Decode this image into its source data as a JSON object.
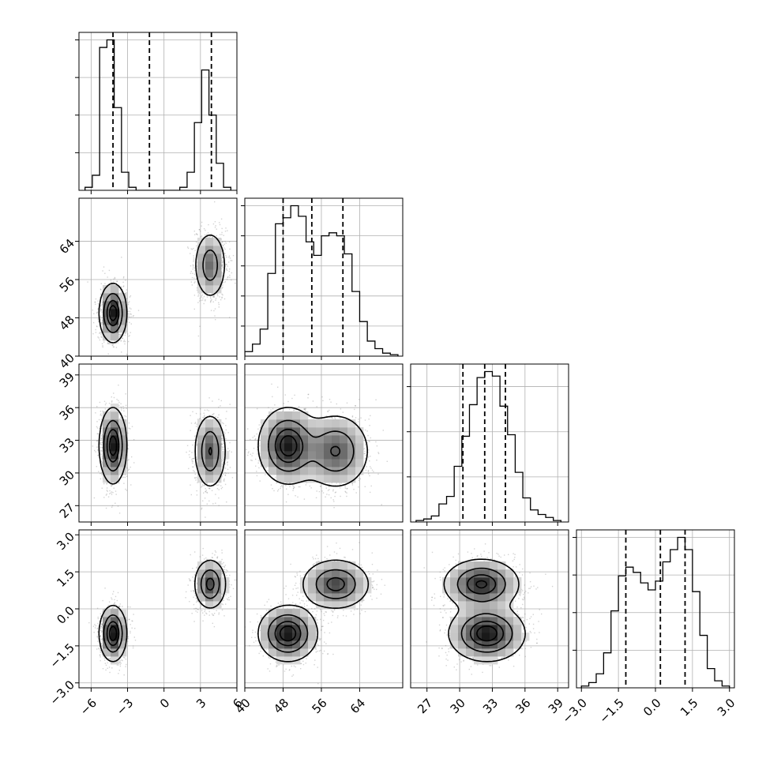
{
  "chart_data": {
    "type": "corner",
    "parameters": [
      {
        "range": [
          -7,
          6
        ],
        "ticks": [
          -6,
          -3,
          0,
          3,
          6
        ],
        "tick_labels": [
          "−6",
          "−3",
          "0",
          "3",
          "6"
        ],
        "quantiles": [
          -4.2,
          -1.2,
          3.9
        ],
        "histogram": {
          "edges": [
            -6.5,
            -5.9,
            -5.3,
            -4.7,
            -4.1,
            -3.5,
            -2.9,
            -2.3,
            -1.7,
            -1.1,
            -0.5,
            0.1,
            0.7,
            1.3,
            1.9,
            2.5,
            3.1,
            3.7,
            4.3,
            4.9,
            5.5
          ],
          "counts": [
            2,
            10,
            95,
            100,
            55,
            12,
            2,
            0,
            0,
            0,
            0,
            0,
            0,
            2,
            12,
            45,
            80,
            50,
            18,
            2
          ]
        }
      },
      {
        "range": [
          40,
          73
        ],
        "ticks": [
          40,
          48,
          56,
          64
        ],
        "tick_labels": [
          "40",
          "48",
          "56",
          "64"
        ],
        "quantiles": [
          48.0,
          54.0,
          60.5
        ],
        "histogram": {
          "edges": [
            40,
            41.6,
            43.2,
            44.8,
            46.4,
            48,
            49.6,
            51.2,
            52.8,
            54.4,
            56,
            57.6,
            59.2,
            60.8,
            62.4,
            64,
            65.6,
            67.2,
            68.8,
            70.4,
            72
          ],
          "counts": [
            3,
            8,
            18,
            55,
            88,
            92,
            100,
            93,
            76,
            67,
            80,
            82,
            80,
            68,
            43,
            23,
            10,
            5,
            2,
            1
          ]
        }
      },
      {
        "range": [
          25.5,
          40
        ],
        "ticks": [
          27,
          30,
          33,
          36,
          39
        ],
        "tick_labels": [
          "27",
          "30",
          "33",
          "36",
          "39"
        ],
        "quantiles": [
          30.3,
          32.3,
          34.2
        ],
        "histogram": {
          "edges": [
            26,
            26.7,
            27.4,
            28.1,
            28.8,
            29.5,
            30.2,
            30.9,
            31.6,
            32.3,
            33,
            33.7,
            34.4,
            35.1,
            35.8,
            36.5,
            37.2,
            37.9,
            38.6,
            39.3
          ],
          "counts": [
            1,
            2,
            4,
            12,
            17,
            37,
            57,
            78,
            96,
            100,
            97,
            77,
            58,
            33,
            16,
            8,
            5,
            3,
            1
          ]
        }
      },
      {
        "range": [
          -3.2,
          3.2
        ],
        "ticks": [
          -3.0,
          -1.5,
          0.0,
          1.5,
          3.0
        ],
        "tick_labels": [
          "−3.0",
          "−1.5",
          "0.0",
          "1.5",
          "3.0"
        ],
        "quantiles": [
          -1.2,
          0.2,
          1.2
        ],
        "histogram": {
          "edges": [
            -3.0,
            -2.7,
            -2.4,
            -2.1,
            -1.8,
            -1.5,
            -1.2,
            -0.9,
            -0.6,
            -0.3,
            0.0,
            0.3,
            0.6,
            0.9,
            1.2,
            1.5,
            1.8,
            2.1,
            2.4,
            2.7,
            3.0
          ],
          "counts": [
            1,
            3,
            8,
            20,
            44,
            64,
            69,
            66,
            60,
            56,
            61,
            72,
            79,
            86,
            79,
            55,
            30,
            11,
            4,
            1
          ]
        }
      }
    ],
    "diagonal_ticks": [
      {
        "ticks": [
          0.25,
          0.5,
          0.75,
          1.0
        ]
      },
      {
        "ticks": [
          0.2,
          0.4,
          0.6,
          0.8,
          1.0
        ]
      },
      {
        "ticks": [
          0.3,
          0.6,
          0.9
        ]
      },
      {
        "ticks": [
          0.25,
          0.5,
          0.75,
          1.0
        ]
      }
    ],
    "modes": [
      {
        "weight": 0.55,
        "mean": [
          -4.2,
          49.0,
          32.5,
          -1.0
        ],
        "sd": [
          0.55,
          3.0,
          1.7,
          0.55
        ]
      },
      {
        "weight": 0.45,
        "mean": [
          3.8,
          59.0,
          32.0,
          1.0
        ],
        "sd": [
          0.65,
          3.5,
          1.7,
          0.5
        ]
      }
    ],
    "scatter_points_per_panel": 2200,
    "density_grid_bins": 20,
    "contour_levels": [
      0.118,
      0.393,
      0.675,
      0.864
    ],
    "colors": {
      "hist": "#000000",
      "contour": "#000000",
      "density_dark": "#000000",
      "scatter": "#808080",
      "grid": "#b0b0b0",
      "background": "#ffffff"
    },
    "grid": true,
    "title": "",
    "axis_labels": [
      "",
      "",
      "",
      ""
    ]
  }
}
